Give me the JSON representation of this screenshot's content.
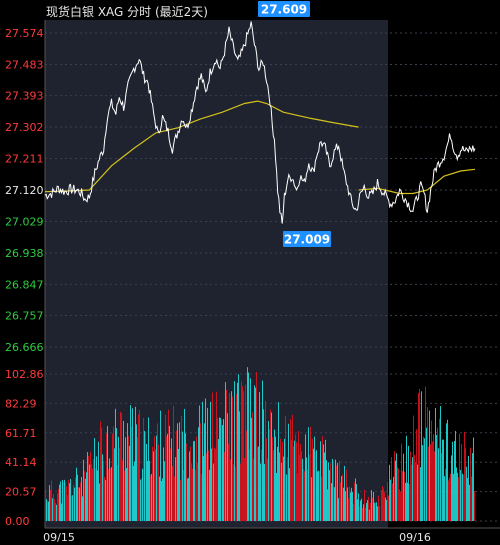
{
  "header": {
    "title": "现货白银 XAG 分时 (最近2天)"
  },
  "colors": {
    "background": "#000000",
    "day1_panel": "#1f2330",
    "price_line": "#ffffff",
    "avg_line": "#d4c21a",
    "axis_up": "#ff3b3b",
    "axis_down": "#2ecc40",
    "axis_neutral": "#e6e6e6",
    "volume_up": "#e8121e",
    "volume_down": "#22e6e6",
    "badge_bg": "#1e90ff",
    "badge_text": "#ffffff"
  },
  "chart_data": [
    {
      "type": "line",
      "title": "现货白银 XAG 分时 (最近2天)",
      "xlabel": "",
      "ylabel": "",
      "ylim": [
        26.666,
        27.574
      ],
      "y_ticks": [
        "27.574",
        "27.483",
        "27.393",
        "27.302",
        "27.211",
        "27.120",
        "27.029",
        "26.938",
        "26.847",
        "26.757",
        "26.666"
      ],
      "reference_price": 27.12,
      "x_labels": [
        "09/15",
        "09/16"
      ],
      "annotations": {
        "high": "27.609",
        "low": "27.009"
      },
      "series": [
        {
          "key": "price",
          "points": [
            [
              0,
              27.105
            ],
            [
              6,
              27.11
            ],
            [
              12,
              27.125
            ],
            [
              18,
              27.115
            ],
            [
              23,
              27.122
            ],
            [
              29,
              27.12
            ],
            [
              33,
              27.11
            ],
            [
              36,
              27.093
            ],
            [
              40,
              27.1
            ],
            [
              45,
              27.17
            ],
            [
              49,
              27.21
            ],
            [
              53,
              27.24
            ],
            [
              56,
              27.33
            ],
            [
              60,
              27.37
            ],
            [
              64,
              27.34
            ],
            [
              67,
              27.39
            ],
            [
              71,
              27.36
            ],
            [
              75,
              27.42
            ],
            [
              80,
              27.47
            ],
            [
              85,
              27.5
            ],
            [
              89,
              27.45
            ],
            [
              93,
              27.43
            ],
            [
              98,
              27.34
            ],
            [
              102,
              27.28
            ],
            [
              106,
              27.33
            ],
            [
              111,
              27.29
            ],
            [
              115,
              27.24
            ],
            [
              119,
              27.28
            ],
            [
              124,
              27.33
            ],
            [
              128,
              27.3
            ],
            [
              133,
              27.36
            ],
            [
              137,
              27.42
            ],
            [
              141,
              27.45
            ],
            [
              145,
              27.4
            ],
            [
              149,
              27.46
            ],
            [
              154,
              27.5
            ],
            [
              158,
              27.47
            ],
            [
              162,
              27.52
            ],
            [
              166,
              27.58
            ],
            [
              170,
              27.53
            ],
            [
              174,
              27.49
            ],
            [
              178,
              27.52
            ],
            [
              183,
              27.57
            ],
            [
              186,
              27.6
            ],
            [
              189,
              27.54
            ],
            [
              193,
              27.47
            ],
            [
              197,
              27.49
            ],
            [
              200,
              27.44
            ],
            [
              203,
              27.38
            ],
            [
              205,
              27.31
            ],
            [
              207,
              27.27
            ],
            [
              210,
              27.12
            ],
            [
              212,
              27.06
            ],
            [
              214,
              27.02
            ],
            [
              216,
              27.1
            ],
            [
              219,
              27.15
            ],
            [
              223,
              27.16
            ],
            [
              227,
              27.12
            ],
            [
              230,
              27.16
            ],
            [
              234,
              27.14
            ],
            [
              238,
              27.2
            ],
            [
              242,
              27.17
            ],
            [
              245,
              27.22
            ],
            [
              249,
              27.26
            ],
            [
              253,
              27.24
            ],
            [
              257,
              27.19
            ],
            [
              261,
              27.23
            ],
            [
              265,
              27.25
            ],
            [
              269,
              27.18
            ],
            [
              273,
              27.13
            ],
            [
              277,
              27.08
            ],
            [
              281,
              27.06
            ],
            [
              284,
              27.1
            ],
            [
              288,
              27.13
            ],
            [
              292,
              27.1
            ],
            [
              296,
              27.11
            ],
            [
              300,
              27.14
            ],
            [
              304,
              27.12
            ],
            [
              308,
              27.1
            ],
            [
              312,
              27.08
            ],
            [
              316,
              27.09
            ],
            [
              320,
              27.12
            ],
            [
              324,
              27.1
            ],
            [
              328,
              27.08
            ],
            [
              332,
              27.06
            ],
            [
              336,
              27.1
            ],
            [
              339,
              27.13
            ],
            [
              342,
              27.11
            ],
            [
              345,
              27.06
            ],
            [
              348,
              27.12
            ],
            [
              352,
              27.18
            ],
            [
              356,
              27.2
            ],
            [
              360,
              27.22
            ],
            [
              363,
              27.25
            ],
            [
              366,
              27.28
            ],
            [
              369,
              27.24
            ],
            [
              372,
              27.22
            ],
            [
              376,
              27.24
            ],
            [
              380,
              27.23
            ],
            [
              384,
              27.24
            ],
            [
              388,
              27.24
            ]
          ],
          "color": "#ffffff"
        },
        {
          "key": "average",
          "points": [
            [
              0,
              27.115
            ],
            [
              20,
              27.117
            ],
            [
              40,
              27.12
            ],
            [
              60,
              27.19
            ],
            [
              80,
              27.24
            ],
            [
              100,
              27.285
            ],
            [
              120,
              27.3
            ],
            [
              140,
              27.325
            ],
            [
              160,
              27.345
            ],
            [
              180,
              27.37
            ],
            [
              192,
              27.377
            ],
            [
              200,
              27.37
            ],
            [
              215,
              27.345
            ],
            [
              240,
              27.327
            ],
            [
              260,
              27.315
            ],
            [
              283,
              27.302
            ],
            [
              283,
              27.12
            ],
            [
              300,
              27.125
            ],
            [
              320,
              27.11
            ],
            [
              332,
              27.11
            ],
            [
              345,
              27.12
            ],
            [
              360,
              27.16
            ],
            [
              375,
              27.175
            ],
            [
              388,
              27.18
            ]
          ],
          "color": "#d4c21a"
        }
      ]
    },
    {
      "type": "bar",
      "title": "",
      "xlabel": "",
      "ylabel": "",
      "ylim": [
        0,
        102.86
      ],
      "y_ticks": [
        "102.86",
        "82.29",
        "61.71",
        "41.14",
        "20.57",
        "0.00"
      ],
      "count": 430,
      "gap_index": 335,
      "envelope": [
        [
          0,
          28
        ],
        [
          20,
          32
        ],
        [
          40,
          45
        ],
        [
          60,
          80
        ],
        [
          80,
          88
        ],
        [
          100,
          75
        ],
        [
          120,
          80
        ],
        [
          140,
          82
        ],
        [
          160,
          88
        ],
        [
          180,
          100
        ],
        [
          195,
          108
        ],
        [
          210,
          110
        ],
        [
          225,
          88
        ],
        [
          240,
          80
        ],
        [
          260,
          72
        ],
        [
          280,
          58
        ],
        [
          300,
          38
        ],
        [
          320,
          22
        ],
        [
          335,
          24
        ],
        [
          345,
          45
        ],
        [
          360,
          60
        ],
        [
          375,
          98
        ],
        [
          395,
          85
        ],
        [
          410,
          65
        ],
        [
          429,
          60
        ]
      ],
      "colors": {
        "up": "#e8121e",
        "down": "#22e6e6"
      }
    }
  ]
}
